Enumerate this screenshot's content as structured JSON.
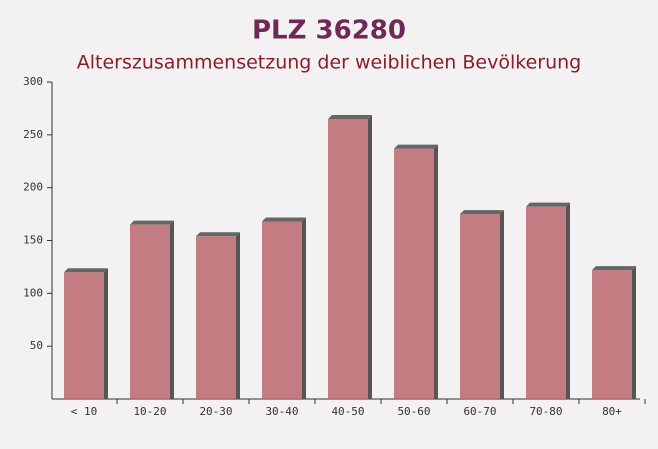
{
  "chart_data": {
    "type": "bar",
    "title": "PLZ 36280",
    "subtitle": "Alterszusammensetzung der weiblichen Bevölkerung",
    "categories": [
      "< 10",
      "10-20",
      "20-30",
      "30-40",
      "40-50",
      "50-60",
      "60-70",
      "70-80",
      "80+"
    ],
    "values": [
      120,
      165,
      154,
      168,
      265,
      237,
      175,
      182,
      122
    ],
    "color": "#b9676f",
    "ylim": [
      0,
      300
    ],
    "yticks": [
      50,
      100,
      150,
      200,
      250,
      300
    ],
    "grid": false
  }
}
